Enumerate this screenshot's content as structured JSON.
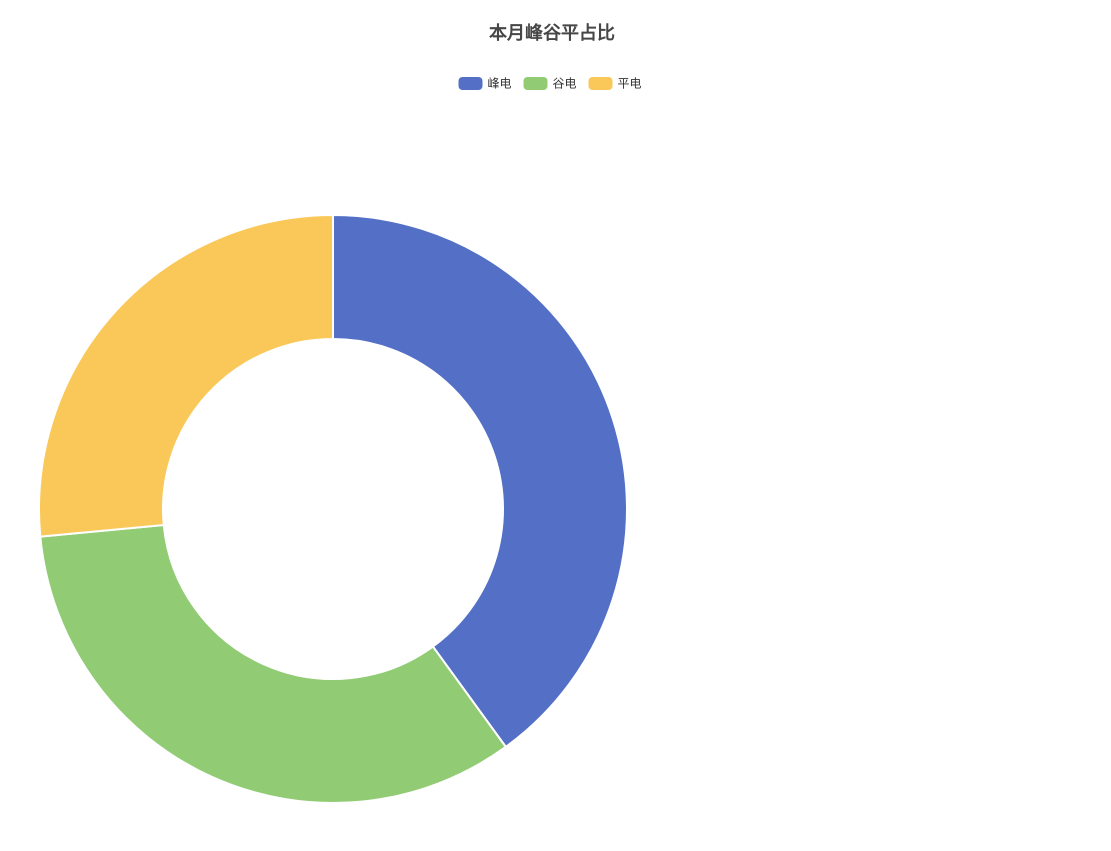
{
  "chart_data": {
    "type": "pie",
    "title": "本月峰谷平占比",
    "categories": [
      "峰电",
      "谷电",
      "平电"
    ],
    "values": [
      40,
      33.5,
      26.5
    ],
    "colors": [
      "#5470c6",
      "#91cc75",
      "#fac858"
    ],
    "donut": true
  }
}
